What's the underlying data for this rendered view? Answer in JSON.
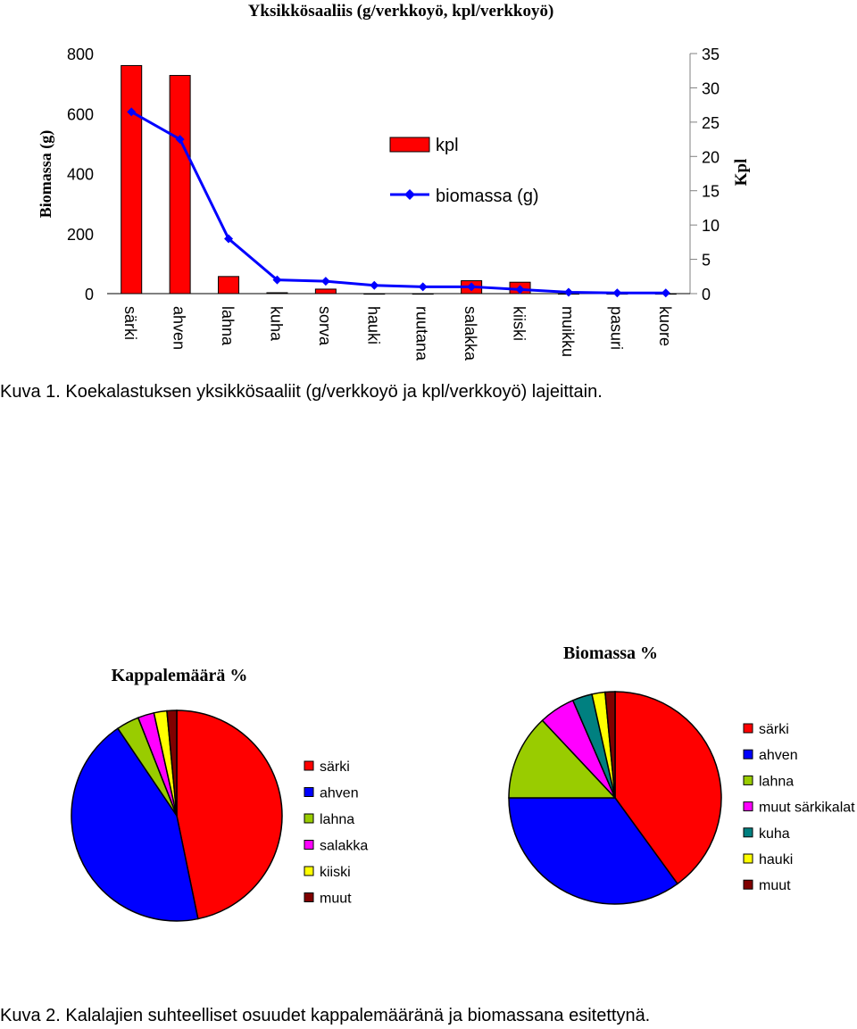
{
  "chart_data": [
    {
      "type": "bar",
      "title": "Yksikkösaaliis (g/verkkoyö, kpl/verkkoyö)",
      "categories": [
        "särki",
        "ahven",
        "lahna",
        "kuha",
        "sorva",
        "hauki",
        "ruutana",
        "salakka",
        "kiiski",
        "muikku",
        "pasuri",
        "kuore"
      ],
      "ylabel_left": "Biomassa (g)",
      "ylabel_right": "Kpl",
      "left_axis": {
        "ticks": [
          "0",
          "200",
          "400",
          "600",
          "800"
        ]
      },
      "right_axis": {
        "ticks": [
          "0",
          "5",
          "10",
          "15",
          "20",
          "25",
          "30",
          "35"
        ]
      },
      "legend_position": "top-center",
      "series": [
        {
          "name": "kpl",
          "type": "bar",
          "axis": "left",
          "color": "#ff0000",
          "values": [
            760,
            727,
            57,
            3,
            15,
            0,
            0,
            43,
            38,
            0,
            0,
            0
          ]
        },
        {
          "name": "biomassa (g)",
          "type": "line",
          "axis": "right",
          "color": "#0000ff",
          "values": [
            26.5,
            22.5,
            8.0,
            2.0,
            1.8,
            1.2,
            1.0,
            1.0,
            0.6,
            0.2,
            0.1,
            0.1
          ]
        }
      ]
    },
    {
      "type": "pie",
      "title": "Kappalemäärä %",
      "labels": [
        "särki",
        "ahven",
        "lahna",
        "salakka",
        "kiiski",
        "muut"
      ],
      "values": [
        47,
        44,
        3.5,
        2.5,
        2,
        1.5
      ],
      "colors": [
        "#ff0000",
        "#0000ff",
        "#99cc00",
        "#ff00ff",
        "#ffff00",
        "#800000"
      ],
      "legend_position": "right"
    },
    {
      "type": "pie",
      "title": "Biomassa %",
      "labels": [
        "särki",
        "ahven",
        "lahna",
        "muut särkikalat",
        "kuha",
        "hauki",
        "muut"
      ],
      "values": [
        40,
        35,
        13,
        5.5,
        3,
        2,
        1.5
      ],
      "colors": [
        "#ff0000",
        "#0000ff",
        "#99cc00",
        "#ff00ff",
        "#008080",
        "#ffff00",
        "#800000"
      ],
      "legend_position": "right"
    }
  ],
  "captions": {
    "figure1": "Kuva 1. Koekalastuksen yksikkösaaliit (g/verkkoyö ja kpl/verkkoyö) lajeittain.",
    "figure2": "Kuva 2. Kalalajien suhteelliset osuudet kappalemääränä ja biomassana esitettynä."
  }
}
